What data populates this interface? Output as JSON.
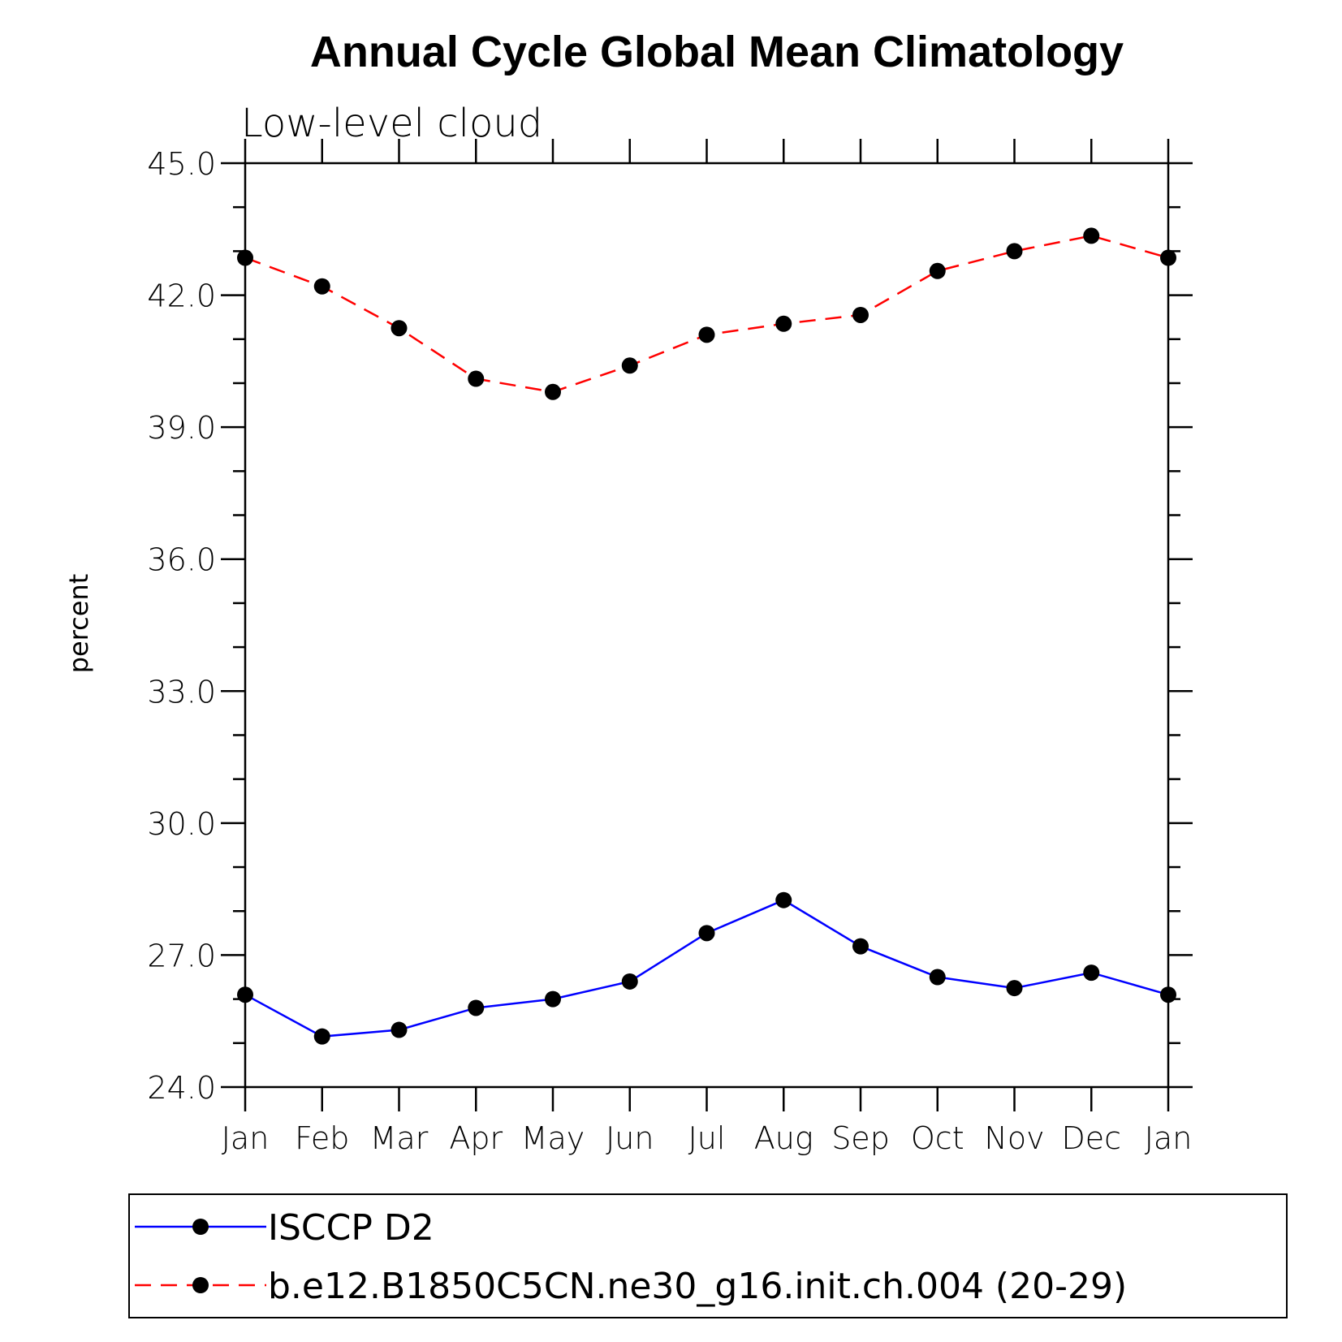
{
  "chart_data": {
    "type": "line",
    "title": "Annual Cycle Global Mean Climatology",
    "subtitle": "Low-level cloud",
    "xlabel": "",
    "ylabel": "percent",
    "categories": [
      "Jan",
      "Feb",
      "Mar",
      "Apr",
      "May",
      "Jun",
      "Jul",
      "Aug",
      "Sep",
      "Oct",
      "Nov",
      "Dec",
      "Jan"
    ],
    "ylim": [
      24.0,
      45.0
    ],
    "yticks": [
      "24.0",
      "27.0",
      "30.0",
      "33.0",
      "36.0",
      "39.0",
      "42.0",
      "45.0"
    ],
    "ytick_values": [
      24,
      27,
      30,
      33,
      36,
      39,
      42,
      45
    ],
    "series": [
      {
        "name": "ISCCP D2",
        "color": "#0000ff",
        "line_style": "solid",
        "marker": "filled-circle",
        "values": [
          26.1,
          25.15,
          25.3,
          25.8,
          26.0,
          26.4,
          27.5,
          28.25,
          27.2,
          26.5,
          26.25,
          26.6,
          26.1
        ]
      },
      {
        "name": "b.e12.B1850C5CN.ne30_g16.init.ch.004 (20-29)",
        "color": "#ff0000",
        "line_style": "dashed",
        "marker": "filled-circle",
        "values": [
          42.85,
          42.2,
          41.25,
          40.1,
          39.8,
          40.4,
          41.1,
          41.35,
          41.55,
          42.55,
          43.0,
          43.35,
          42.85
        ]
      }
    ],
    "legend_position": "bottom"
  }
}
